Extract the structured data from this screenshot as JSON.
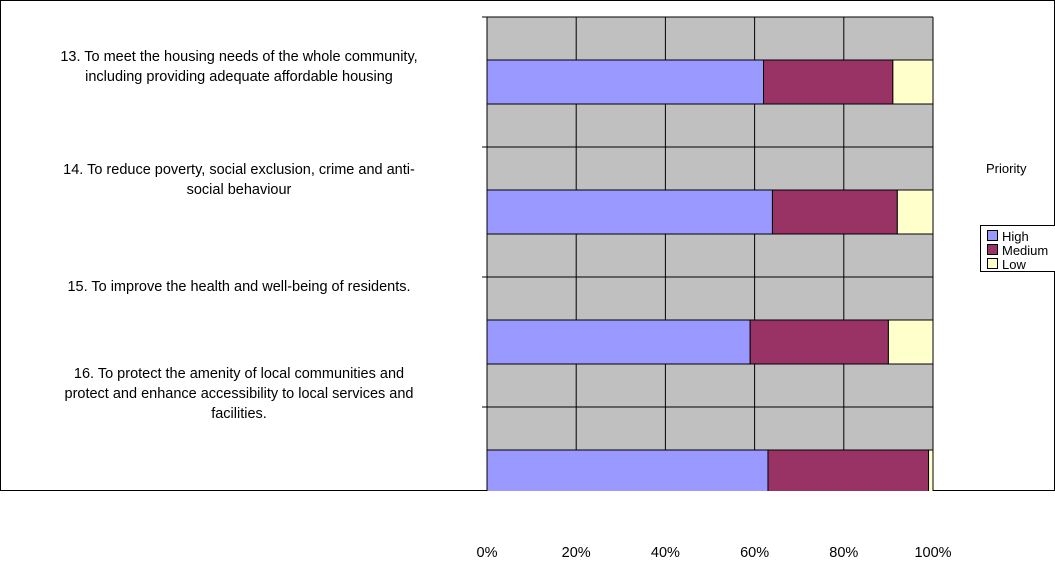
{
  "chart_data": {
    "type": "bar",
    "orientation": "horizontal",
    "stacked": "percent",
    "categories": [
      "13. To meet the housing needs of the whole community,\nincluding providing adequate affordable housing",
      "14. To reduce poverty, social exclusion, crime and anti-\nsocial behaviour",
      "15. To improve the health and well-being of residents.",
      "16. To protect the amenity of local communities and\nprotect and enhance accessibility to local services and\nfacilities."
    ],
    "series": [
      {
        "name": "High",
        "color": "#9999ff",
        "values": [
          62,
          64,
          59,
          63
        ]
      },
      {
        "name": "Medium",
        "color": "#993366",
        "values": [
          29,
          28,
          31,
          36
        ]
      },
      {
        "name": "Low",
        "color": "#ffffcc",
        "values": [
          9,
          8,
          10,
          1
        ]
      }
    ],
    "x_ticks": [
      "0%",
      "20%",
      "40%",
      "60%",
      "80%",
      "100%"
    ],
    "xlim": [
      0,
      100
    ],
    "grid": true,
    "plot_background": "#c0c0c0",
    "legend": {
      "title": "Priority",
      "position": "right"
    }
  }
}
